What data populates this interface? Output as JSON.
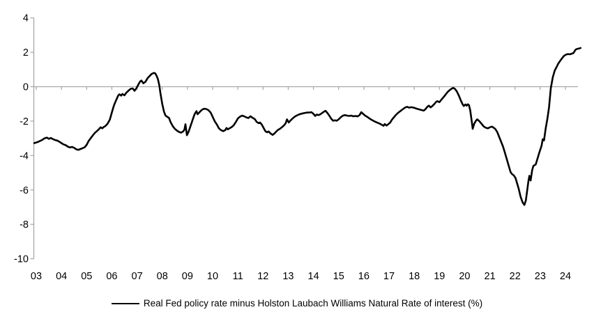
{
  "figure": {
    "background": "#ffffff"
  },
  "chart_data": {
    "type": "line",
    "title": "",
    "xlabel": "",
    "ylabel": "",
    "ylim": [
      -10,
      4
    ],
    "xlim": [
      2002.92,
      2024.72
    ],
    "grid": "zero-line-only",
    "legend_position": "bottom-center",
    "line_color": "#000000",
    "axis_color": "#a6a6a6",
    "text_color": "#000000",
    "y_ticks": [
      4,
      2,
      0,
      -2,
      -4,
      -6,
      -8,
      -10
    ],
    "x_tick_years": [
      2003,
      2004,
      2005,
      2006,
      2007,
      2008,
      2009,
      2010,
      2011,
      2012,
      2013,
      2014,
      2015,
      2016,
      2017,
      2018,
      2019,
      2020,
      2021,
      2022,
      2023,
      2024
    ],
    "x_tick_labels": [
      "03",
      "04",
      "05",
      "06",
      "07",
      "08",
      "09",
      "10",
      "11",
      "12",
      "13",
      "14",
      "15",
      "16",
      "17",
      "18",
      "19",
      "20",
      "21",
      "22",
      "23",
      "24"
    ],
    "series": [
      {
        "name": "Real Fed policy rate minus Holston Laubach Williams Natural Rate of interest (%)",
        "points": [
          [
            2002.92,
            -3.28
          ],
          [
            2003.0,
            -3.24
          ],
          [
            2003.08,
            -3.2
          ],
          [
            2003.17,
            -3.14
          ],
          [
            2003.25,
            -3.08
          ],
          [
            2003.33,
            -3.0
          ],
          [
            2003.42,
            -2.96
          ],
          [
            2003.5,
            -3.03
          ],
          [
            2003.58,
            -2.98
          ],
          [
            2003.67,
            -3.05
          ],
          [
            2003.75,
            -3.1
          ],
          [
            2003.83,
            -3.13
          ],
          [
            2003.92,
            -3.2
          ],
          [
            2004.0,
            -3.28
          ],
          [
            2004.08,
            -3.35
          ],
          [
            2004.17,
            -3.4
          ],
          [
            2004.25,
            -3.48
          ],
          [
            2004.33,
            -3.53
          ],
          [
            2004.42,
            -3.5
          ],
          [
            2004.5,
            -3.55
          ],
          [
            2004.58,
            -3.63
          ],
          [
            2004.67,
            -3.67
          ],
          [
            2004.75,
            -3.62
          ],
          [
            2004.83,
            -3.58
          ],
          [
            2004.92,
            -3.52
          ],
          [
            2005.0,
            -3.38
          ],
          [
            2005.08,
            -3.15
          ],
          [
            2005.17,
            -2.98
          ],
          [
            2005.25,
            -2.82
          ],
          [
            2005.33,
            -2.68
          ],
          [
            2005.42,
            -2.56
          ],
          [
            2005.5,
            -2.45
          ],
          [
            2005.55,
            -2.36
          ],
          [
            2005.62,
            -2.42
          ],
          [
            2005.67,
            -2.35
          ],
          [
            2005.75,
            -2.28
          ],
          [
            2005.83,
            -2.15
          ],
          [
            2005.92,
            -1.92
          ],
          [
            2006.0,
            -1.5
          ],
          [
            2006.08,
            -1.1
          ],
          [
            2006.17,
            -0.78
          ],
          [
            2006.25,
            -0.52
          ],
          [
            2006.3,
            -0.44
          ],
          [
            2006.37,
            -0.52
          ],
          [
            2006.42,
            -0.42
          ],
          [
            2006.5,
            -0.5
          ],
          [
            2006.58,
            -0.34
          ],
          [
            2006.67,
            -0.22
          ],
          [
            2006.75,
            -0.12
          ],
          [
            2006.83,
            -0.1
          ],
          [
            2006.9,
            -0.24
          ],
          [
            2006.97,
            -0.1
          ],
          [
            2007.05,
            0.12
          ],
          [
            2007.12,
            0.3
          ],
          [
            2007.17,
            0.36
          ],
          [
            2007.25,
            0.2
          ],
          [
            2007.33,
            0.28
          ],
          [
            2007.42,
            0.5
          ],
          [
            2007.5,
            0.62
          ],
          [
            2007.58,
            0.74
          ],
          [
            2007.67,
            0.8
          ],
          [
            2007.72,
            0.78
          ],
          [
            2007.78,
            0.62
          ],
          [
            2007.83,
            0.42
          ],
          [
            2007.88,
            0.1
          ],
          [
            2007.93,
            -0.4
          ],
          [
            2008.0,
            -1.0
          ],
          [
            2008.07,
            -1.45
          ],
          [
            2008.13,
            -1.68
          ],
          [
            2008.2,
            -1.75
          ],
          [
            2008.27,
            -1.82
          ],
          [
            2008.33,
            -2.05
          ],
          [
            2008.42,
            -2.3
          ],
          [
            2008.5,
            -2.45
          ],
          [
            2008.58,
            -2.55
          ],
          [
            2008.67,
            -2.63
          ],
          [
            2008.75,
            -2.67
          ],
          [
            2008.83,
            -2.6
          ],
          [
            2008.88,
            -2.5
          ],
          [
            2008.92,
            -2.18
          ],
          [
            2008.98,
            -2.82
          ],
          [
            2009.05,
            -2.6
          ],
          [
            2009.13,
            -2.25
          ],
          [
            2009.2,
            -1.95
          ],
          [
            2009.27,
            -1.65
          ],
          [
            2009.32,
            -1.5
          ],
          [
            2009.36,
            -1.42
          ],
          [
            2009.4,
            -1.6
          ],
          [
            2009.47,
            -1.5
          ],
          [
            2009.53,
            -1.4
          ],
          [
            2009.6,
            -1.32
          ],
          [
            2009.67,
            -1.28
          ],
          [
            2009.75,
            -1.3
          ],
          [
            2009.83,
            -1.36
          ],
          [
            2009.92,
            -1.5
          ],
          [
            2010.0,
            -1.75
          ],
          [
            2010.08,
            -2.0
          ],
          [
            2010.17,
            -2.2
          ],
          [
            2010.25,
            -2.42
          ],
          [
            2010.33,
            -2.52
          ],
          [
            2010.42,
            -2.58
          ],
          [
            2010.5,
            -2.52
          ],
          [
            2010.55,
            -2.4
          ],
          [
            2010.6,
            -2.48
          ],
          [
            2010.67,
            -2.42
          ],
          [
            2010.75,
            -2.35
          ],
          [
            2010.83,
            -2.25
          ],
          [
            2010.92,
            -2.05
          ],
          [
            2011.0,
            -1.85
          ],
          [
            2011.08,
            -1.75
          ],
          [
            2011.17,
            -1.68
          ],
          [
            2011.25,
            -1.72
          ],
          [
            2011.33,
            -1.78
          ],
          [
            2011.42,
            -1.82
          ],
          [
            2011.5,
            -1.72
          ],
          [
            2011.58,
            -1.8
          ],
          [
            2011.67,
            -1.88
          ],
          [
            2011.75,
            -2.05
          ],
          [
            2011.83,
            -2.12
          ],
          [
            2011.88,
            -2.08
          ],
          [
            2011.95,
            -2.2
          ],
          [
            2012.03,
            -2.42
          ],
          [
            2012.1,
            -2.6
          ],
          [
            2012.17,
            -2.65
          ],
          [
            2012.22,
            -2.6
          ],
          [
            2012.3,
            -2.72
          ],
          [
            2012.38,
            -2.8
          ],
          [
            2012.45,
            -2.72
          ],
          [
            2012.53,
            -2.6
          ],
          [
            2012.6,
            -2.5
          ],
          [
            2012.67,
            -2.45
          ],
          [
            2012.75,
            -2.35
          ],
          [
            2012.83,
            -2.25
          ],
          [
            2012.9,
            -2.12
          ],
          [
            2012.95,
            -1.9
          ],
          [
            2013.02,
            -2.08
          ],
          [
            2013.1,
            -1.95
          ],
          [
            2013.17,
            -1.85
          ],
          [
            2013.25,
            -1.75
          ],
          [
            2013.33,
            -1.68
          ],
          [
            2013.42,
            -1.62
          ],
          [
            2013.5,
            -1.58
          ],
          [
            2013.58,
            -1.55
          ],
          [
            2013.67,
            -1.52
          ],
          [
            2013.75,
            -1.5
          ],
          [
            2013.83,
            -1.5
          ],
          [
            2013.92,
            -1.48
          ],
          [
            2014.0,
            -1.58
          ],
          [
            2014.07,
            -1.7
          ],
          [
            2014.13,
            -1.62
          ],
          [
            2014.2,
            -1.65
          ],
          [
            2014.28,
            -1.6
          ],
          [
            2014.35,
            -1.52
          ],
          [
            2014.42,
            -1.45
          ],
          [
            2014.48,
            -1.4
          ],
          [
            2014.55,
            -1.52
          ],
          [
            2014.63,
            -1.68
          ],
          [
            2014.7,
            -1.85
          ],
          [
            2014.78,
            -1.98
          ],
          [
            2014.85,
            -1.95
          ],
          [
            2014.92,
            -1.98
          ],
          [
            2015.0,
            -1.9
          ],
          [
            2015.08,
            -1.78
          ],
          [
            2015.17,
            -1.68
          ],
          [
            2015.25,
            -1.65
          ],
          [
            2015.33,
            -1.68
          ],
          [
            2015.42,
            -1.7
          ],
          [
            2015.5,
            -1.68
          ],
          [
            2015.58,
            -1.72
          ],
          [
            2015.67,
            -1.7
          ],
          [
            2015.75,
            -1.73
          ],
          [
            2015.83,
            -1.65
          ],
          [
            2015.9,
            -1.48
          ],
          [
            2015.97,
            -1.58
          ],
          [
            2016.05,
            -1.68
          ],
          [
            2016.13,
            -1.75
          ],
          [
            2016.2,
            -1.82
          ],
          [
            2016.3,
            -1.92
          ],
          [
            2016.4,
            -2.0
          ],
          [
            2016.5,
            -2.07
          ],
          [
            2016.6,
            -2.13
          ],
          [
            2016.7,
            -2.2
          ],
          [
            2016.78,
            -2.27
          ],
          [
            2016.83,
            -2.17
          ],
          [
            2016.9,
            -2.26
          ],
          [
            2016.97,
            -2.18
          ],
          [
            2017.05,
            -2.08
          ],
          [
            2017.1,
            -1.95
          ],
          [
            2017.17,
            -1.82
          ],
          [
            2017.25,
            -1.68
          ],
          [
            2017.33,
            -1.56
          ],
          [
            2017.42,
            -1.45
          ],
          [
            2017.5,
            -1.36
          ],
          [
            2017.58,
            -1.27
          ],
          [
            2017.65,
            -1.2
          ],
          [
            2017.72,
            -1.17
          ],
          [
            2017.8,
            -1.22
          ],
          [
            2017.88,
            -1.19
          ],
          [
            2017.95,
            -1.21
          ],
          [
            2018.03,
            -1.24
          ],
          [
            2018.1,
            -1.28
          ],
          [
            2018.2,
            -1.32
          ],
          [
            2018.3,
            -1.36
          ],
          [
            2018.38,
            -1.39
          ],
          [
            2018.45,
            -1.3
          ],
          [
            2018.53,
            -1.15
          ],
          [
            2018.58,
            -1.1
          ],
          [
            2018.65,
            -1.2
          ],
          [
            2018.72,
            -1.12
          ],
          [
            2018.8,
            -1.0
          ],
          [
            2018.87,
            -0.88
          ],
          [
            2018.92,
            -0.84
          ],
          [
            2019.0,
            -0.9
          ],
          [
            2019.08,
            -0.75
          ],
          [
            2019.17,
            -0.6
          ],
          [
            2019.25,
            -0.45
          ],
          [
            2019.33,
            -0.3
          ],
          [
            2019.42,
            -0.18
          ],
          [
            2019.5,
            -0.1
          ],
          [
            2019.55,
            -0.07
          ],
          [
            2019.62,
            -0.13
          ],
          [
            2019.7,
            -0.3
          ],
          [
            2019.78,
            -0.55
          ],
          [
            2019.85,
            -0.8
          ],
          [
            2019.92,
            -1.02
          ],
          [
            2019.97,
            -1.12
          ],
          [
            2020.03,
            -1.03
          ],
          [
            2020.08,
            -1.1
          ],
          [
            2020.13,
            -1.02
          ],
          [
            2020.17,
            -1.07
          ],
          [
            2020.22,
            -1.35
          ],
          [
            2020.28,
            -2.0
          ],
          [
            2020.32,
            -2.45
          ],
          [
            2020.38,
            -2.15
          ],
          [
            2020.45,
            -1.98
          ],
          [
            2020.5,
            -1.9
          ],
          [
            2020.58,
            -2.0
          ],
          [
            2020.67,
            -2.15
          ],
          [
            2020.75,
            -2.3
          ],
          [
            2020.83,
            -2.38
          ],
          [
            2020.92,
            -2.42
          ],
          [
            2021.0,
            -2.36
          ],
          [
            2021.08,
            -2.32
          ],
          [
            2021.15,
            -2.38
          ],
          [
            2021.22,
            -2.46
          ],
          [
            2021.3,
            -2.65
          ],
          [
            2021.38,
            -2.95
          ],
          [
            2021.45,
            -3.2
          ],
          [
            2021.53,
            -3.5
          ],
          [
            2021.6,
            -3.85
          ],
          [
            2021.68,
            -4.25
          ],
          [
            2021.75,
            -4.6
          ],
          [
            2021.82,
            -4.95
          ],
          [
            2021.88,
            -5.08
          ],
          [
            2021.95,
            -5.15
          ],
          [
            2022.02,
            -5.3
          ],
          [
            2022.08,
            -5.6
          ],
          [
            2022.15,
            -5.95
          ],
          [
            2022.22,
            -6.4
          ],
          [
            2022.3,
            -6.72
          ],
          [
            2022.37,
            -6.87
          ],
          [
            2022.43,
            -6.6
          ],
          [
            2022.48,
            -6.05
          ],
          [
            2022.53,
            -5.5
          ],
          [
            2022.57,
            -5.18
          ],
          [
            2022.62,
            -5.45
          ],
          [
            2022.68,
            -4.85
          ],
          [
            2022.73,
            -4.6
          ],
          [
            2022.82,
            -4.52
          ],
          [
            2022.9,
            -4.15
          ],
          [
            2022.97,
            -3.8
          ],
          [
            2023.05,
            -3.45
          ],
          [
            2023.1,
            -3.05
          ],
          [
            2023.15,
            -3.12
          ],
          [
            2023.22,
            -2.4
          ],
          [
            2023.28,
            -1.9
          ],
          [
            2023.35,
            -1.2
          ],
          [
            2023.42,
            -0.1
          ],
          [
            2023.5,
            0.55
          ],
          [
            2023.58,
            0.95
          ],
          [
            2023.65,
            1.15
          ],
          [
            2023.72,
            1.35
          ],
          [
            2023.8,
            1.52
          ],
          [
            2023.88,
            1.68
          ],
          [
            2023.95,
            1.8
          ],
          [
            2024.02,
            1.86
          ],
          [
            2024.1,
            1.9
          ],
          [
            2024.17,
            1.88
          ],
          [
            2024.25,
            1.92
          ],
          [
            2024.32,
            1.96
          ],
          [
            2024.4,
            2.15
          ],
          [
            2024.47,
            2.2
          ],
          [
            2024.55,
            2.22
          ],
          [
            2024.6,
            2.25
          ]
        ]
      }
    ]
  }
}
